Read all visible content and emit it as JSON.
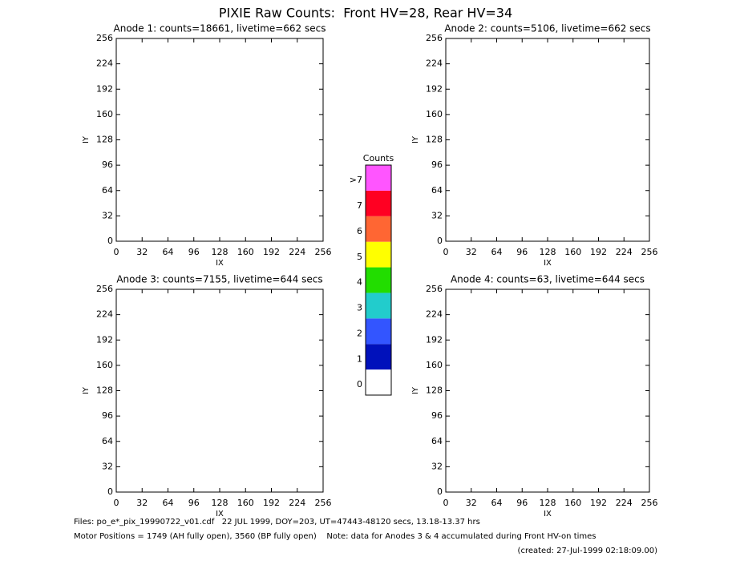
{
  "title": "PIXIE Raw Counts:  Front HV=28, Rear HV=34",
  "chart_data": [
    {
      "type": "heatmap",
      "title": "Anode 1: counts=18661, livetime=662 secs",
      "xlabel": "IX",
      "ylabel": "IY",
      "xlim": [
        0,
        256
      ],
      "ylim": [
        0,
        256
      ],
      "xticks": [
        0,
        32,
        64,
        96,
        128,
        160,
        192,
        224,
        256
      ],
      "yticks": [
        0,
        32,
        64,
        96,
        128,
        160,
        192,
        224,
        256
      ]
    },
    {
      "type": "heatmap",
      "title": "Anode 2: counts=5106, livetime=662 secs",
      "xlabel": "IX",
      "ylabel": "IY",
      "xlim": [
        0,
        256
      ],
      "ylim": [
        0,
        256
      ],
      "xticks": [
        0,
        32,
        64,
        96,
        128,
        160,
        192,
        224,
        256
      ],
      "yticks": [
        0,
        32,
        64,
        96,
        128,
        160,
        192,
        224,
        256
      ]
    },
    {
      "type": "heatmap",
      "title": "Anode 3: counts=7155, livetime=644 secs",
      "xlabel": "IX",
      "ylabel": "IY",
      "xlim": [
        0,
        256
      ],
      "ylim": [
        0,
        256
      ],
      "xticks": [
        0,
        32,
        64,
        96,
        128,
        160,
        192,
        224,
        256
      ],
      "yticks": [
        0,
        32,
        64,
        96,
        128,
        160,
        192,
        224,
        256
      ]
    },
    {
      "type": "heatmap",
      "title": "Anode 4: counts=63, livetime=644 secs",
      "xlabel": "IX",
      "ylabel": "IY",
      "xlim": [
        0,
        256
      ],
      "ylim": [
        0,
        256
      ],
      "xticks": [
        0,
        32,
        64,
        96,
        128,
        160,
        192,
        224,
        256
      ],
      "yticks": [
        0,
        32,
        64,
        96,
        128,
        160,
        192,
        224,
        256
      ]
    }
  ],
  "colorbar": {
    "title": "Counts",
    "labels": [
      "0",
      "1",
      "2",
      "3",
      "4",
      "5",
      "6",
      "7",
      ">7"
    ],
    "colors": [
      "#ffffff",
      "#0011bb",
      "#3355ff",
      "#22cccc",
      "#22dd00",
      "#ffff00",
      "#ff6633",
      "#ff0022",
      "#ff55ff"
    ]
  },
  "footer": [
    "Files: po_e*_pix_19990722_v01.cdf   22 JUL 1999, DOY=203, UT=47443-48120 secs, 13.18-13.37 hrs",
    "Motor Positions = 1749 (AH fully open), 3560 (BP fully open)    Note: data for Anodes 3 & 4 accumulated during Front HV-on times",
    "(created: 27-Jul-1999 02:18:09.00)"
  ]
}
